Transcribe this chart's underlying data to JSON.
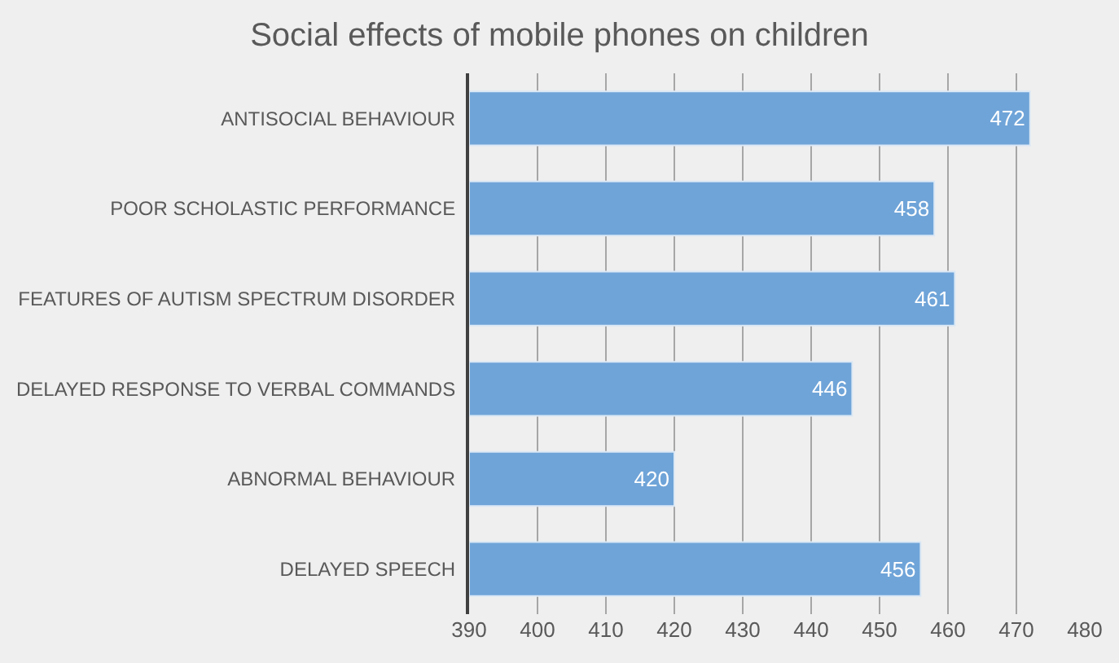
{
  "chart_data": {
    "type": "bar",
    "orientation": "horizontal",
    "title": "Social effects of mobile phones on children",
    "categories": [
      "ANTISOCIAL BEHAVIOUR",
      "POOR SCHOLASTIC PERFORMANCE",
      "FEATURES OF AUTISM SPECTRUM DISORDER",
      "DELAYED RESPONSE TO VERBAL COMMANDS",
      "ABNORMAL BEHAVIOUR",
      "DELAYED SPEECH"
    ],
    "values": [
      472,
      458,
      461,
      446,
      420,
      456
    ],
    "color": "#6fa4d8",
    "xlim": [
      390,
      480
    ],
    "xticks": [
      390,
      400,
      410,
      420,
      430,
      440,
      450,
      460,
      470,
      480
    ],
    "grid": "x",
    "data_labels": true
  }
}
